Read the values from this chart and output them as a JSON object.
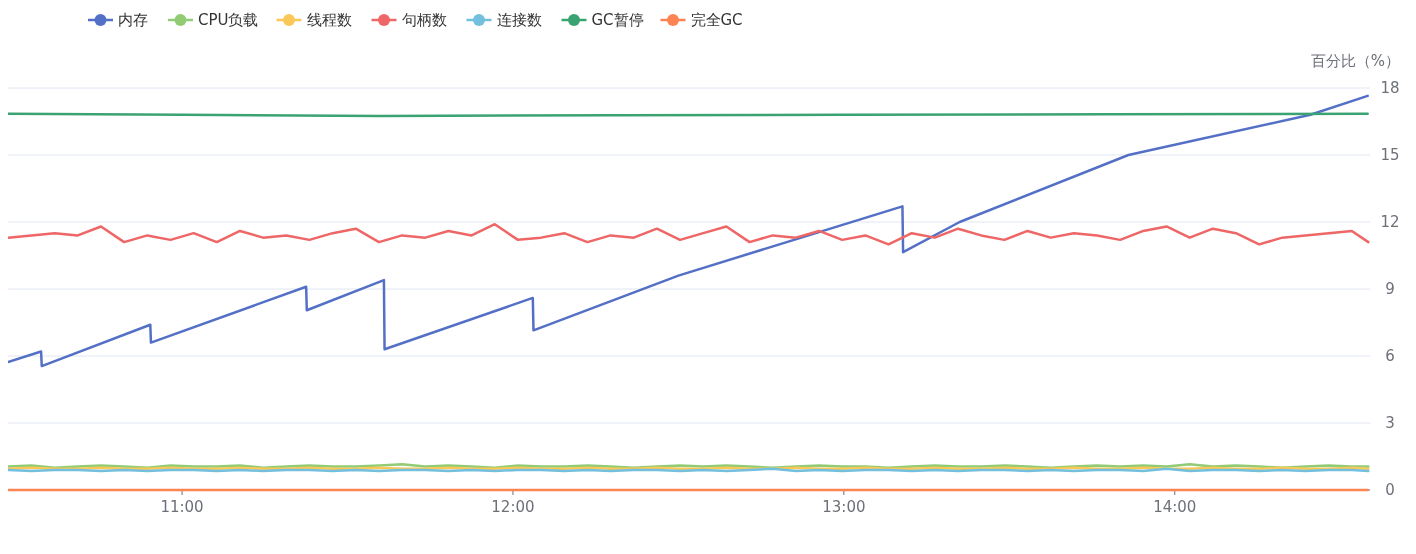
{
  "chart_data": {
    "type": "line",
    "ylabel": "百分比（%）",
    "xlim": [
      10.474,
      14.59
    ],
    "xticks": [
      {
        "value": 11,
        "label": "11:00"
      },
      {
        "value": 12,
        "label": "12:00"
      },
      {
        "value": 13,
        "label": "13:00"
      },
      {
        "value": 14,
        "label": "14:00"
      }
    ],
    "ylim": [
      0,
      18
    ],
    "yticks": [
      0,
      3,
      6,
      9,
      12,
      15,
      18
    ],
    "grid": "y",
    "legend": "top left",
    "marker": "none",
    "line_style": "solid",
    "x": [
      10.475,
      10.545,
      10.615,
      10.685,
      10.755,
      10.825,
      10.895,
      10.965,
      11.035,
      11.105,
      11.175,
      11.245,
      11.315,
      11.385,
      11.455,
      11.525,
      11.595,
      11.665,
      11.735,
      11.805,
      11.875,
      11.945,
      12.015,
      12.085,
      12.155,
      12.225,
      12.295,
      12.365,
      12.435,
      12.505,
      12.575,
      12.645,
      12.715,
      12.785,
      12.855,
      12.925,
      12.995,
      13.065,
      13.135,
      13.205,
      13.275,
      13.345,
      13.415,
      13.485,
      13.555,
      13.625,
      13.695,
      13.765,
      13.835,
      13.905,
      13.975,
      14.045,
      14.115,
      14.185,
      14.255,
      14.325,
      14.395,
      14.465,
      14.535,
      14.585
    ],
    "series": [
      {
        "name": "内存",
        "color": "#5470c6",
        "x": [
          10.474,
          10.574,
          10.576,
          10.904,
          10.906,
          11.375,
          11.377,
          11.61,
          11.612,
          12.06,
          12.062,
          12.5,
          13.177,
          13.179,
          13.35,
          13.86,
          14.41,
          14.583
        ],
        "values": [
          5.73,
          6.2,
          5.55,
          7.4,
          6.6,
          9.1,
          8.05,
          9.4,
          6.3,
          8.6,
          7.15,
          9.6,
          12.7,
          10.65,
          12.0,
          15.0,
          16.8,
          17.65
        ]
      },
      {
        "name": "CPU负载",
        "color": "#91cc75",
        "values": [
          1.05,
          1.1,
          1.0,
          1.05,
          1.1,
          1.05,
          1.0,
          1.1,
          1.05,
          1.05,
          1.1,
          1.0,
          1.05,
          1.1,
          1.05,
          1.05,
          1.1,
          1.15,
          1.05,
          1.1,
          1.05,
          1.0,
          1.1,
          1.05,
          1.05,
          1.1,
          1.05,
          1.0,
          1.05,
          1.1,
          1.05,
          1.1,
          1.05,
          1.0,
          1.05,
          1.1,
          1.05,
          1.05,
          1.0,
          1.05,
          1.1,
          1.05,
          1.05,
          1.1,
          1.05,
          1.0,
          1.05,
          1.1,
          1.05,
          1.1,
          1.05,
          1.15,
          1.05,
          1.1,
          1.05,
          1.0,
          1.05,
          1.1,
          1.05,
          1.05
        ]
      },
      {
        "name": "线程数",
        "color": "#fac858",
        "values": [
          0.95,
          1.0,
          0.95,
          0.95,
          1.0,
          0.95,
          0.95,
          1.0,
          0.95,
          0.95,
          1.0,
          0.95,
          0.95,
          1.0,
          0.95,
          0.95,
          1.0,
          0.95,
          0.95,
          1.0,
          0.95,
          0.95,
          1.0,
          0.95,
          0.95,
          1.0,
          0.95,
          0.95,
          1.0,
          0.95,
          0.95,
          1.0,
          0.95,
          0.95,
          1.0,
          0.95,
          0.95,
          1.0,
          0.95,
          0.95,
          1.0,
          0.95,
          0.95,
          1.0,
          0.95,
          0.95,
          1.0,
          0.95,
          0.95,
          1.0,
          0.95,
          0.95,
          1.0,
          0.95,
          0.95,
          1.0,
          0.95,
          0.95,
          1.0,
          0.95
        ]
      },
      {
        "name": "句柄数",
        "color": "#ee6666",
        "values": [
          11.3,
          11.4,
          11.5,
          11.4,
          11.8,
          11.1,
          11.4,
          11.2,
          11.5,
          11.1,
          11.6,
          11.3,
          11.4,
          11.2,
          11.5,
          11.7,
          11.1,
          11.4,
          11.3,
          11.6,
          11.4,
          11.9,
          11.2,
          11.3,
          11.5,
          11.1,
          11.4,
          11.3,
          11.7,
          11.2,
          11.5,
          11.8,
          11.1,
          11.4,
          11.3,
          11.6,
          11.2,
          11.4,
          11.0,
          11.5,
          11.3,
          11.7,
          11.4,
          11.2,
          11.6,
          11.3,
          11.5,
          11.4,
          11.2,
          11.6,
          11.8,
          11.3,
          11.7,
          11.5,
          11.0,
          11.3,
          11.4,
          11.5,
          11.6,
          11.1
        ]
      },
      {
        "name": "连接数",
        "color": "#73c0de",
        "values": [
          0.9,
          0.85,
          0.9,
          0.9,
          0.85,
          0.9,
          0.85,
          0.9,
          0.9,
          0.85,
          0.9,
          0.85,
          0.9,
          0.9,
          0.85,
          0.9,
          0.85,
          0.9,
          0.9,
          0.85,
          0.9,
          0.85,
          0.9,
          0.9,
          0.85,
          0.9,
          0.85,
          0.9,
          0.9,
          0.85,
          0.9,
          0.85,
          0.9,
          0.95,
          0.85,
          0.9,
          0.85,
          0.9,
          0.9,
          0.85,
          0.9,
          0.85,
          0.9,
          0.9,
          0.85,
          0.9,
          0.85,
          0.9,
          0.9,
          0.85,
          0.95,
          0.85,
          0.9,
          0.9,
          0.85,
          0.9,
          0.85,
          0.9,
          0.9,
          0.85
        ]
      },
      {
        "name": "GC暂停",
        "color": "#3ba272",
        "x": [
          10.474,
          11.0,
          11.6,
          12.3,
          13.0,
          13.8,
          14.583
        ],
        "values": [
          16.85,
          16.8,
          16.75,
          16.78,
          16.8,
          16.82,
          16.85
        ]
      },
      {
        "name": "完全GC",
        "color": "#fc8452",
        "x": [
          10.474,
          14.583
        ],
        "values": [
          0,
          0
        ]
      }
    ]
  }
}
